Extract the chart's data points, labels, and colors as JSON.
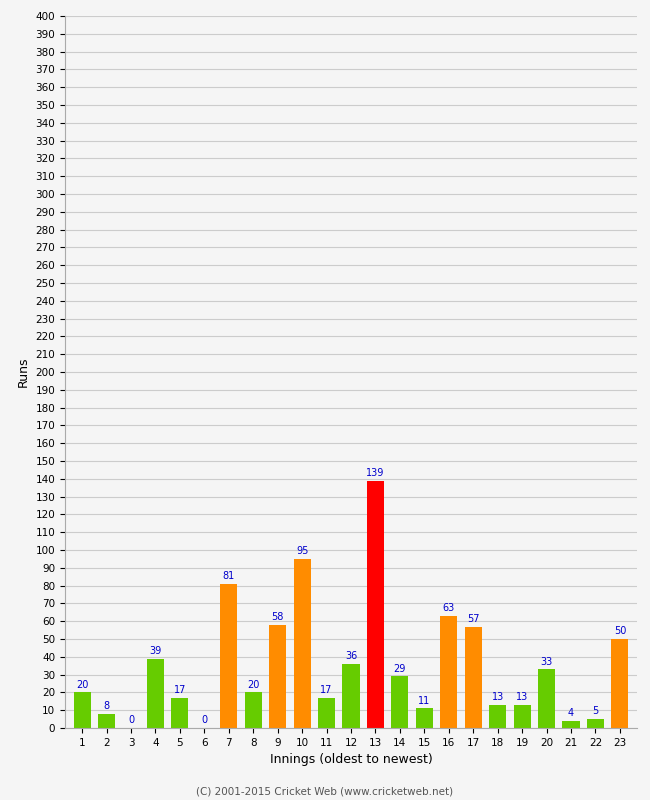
{
  "xlabel": "Innings (oldest to newest)",
  "ylabel": "Runs",
  "innings": [
    1,
    2,
    3,
    4,
    5,
    6,
    7,
    8,
    9,
    10,
    11,
    12,
    13,
    14,
    15,
    16,
    17,
    18,
    19,
    20,
    21,
    22,
    23
  ],
  "values": [
    20,
    8,
    0,
    39,
    17,
    0,
    81,
    20,
    58,
    95,
    17,
    36,
    139,
    29,
    11,
    63,
    57,
    13,
    13,
    33,
    4,
    5,
    50
  ],
  "colors": [
    "#66cc00",
    "#66cc00",
    "#66cc00",
    "#66cc00",
    "#66cc00",
    "#66cc00",
    "#ff8c00",
    "#66cc00",
    "#ff8c00",
    "#ff8c00",
    "#66cc00",
    "#66cc00",
    "#ff0000",
    "#66cc00",
    "#66cc00",
    "#ff8c00",
    "#ff8c00",
    "#66cc00",
    "#66cc00",
    "#66cc00",
    "#66cc00",
    "#66cc00",
    "#ff8c00"
  ],
  "ylim": [
    0,
    400
  ],
  "yticks": [
    0,
    10,
    20,
    30,
    40,
    50,
    60,
    70,
    80,
    90,
    100,
    110,
    120,
    130,
    140,
    150,
    160,
    170,
    180,
    190,
    200,
    210,
    220,
    230,
    240,
    250,
    260,
    270,
    280,
    290,
    300,
    310,
    320,
    330,
    340,
    350,
    360,
    370,
    380,
    390,
    400
  ],
  "label_color": "#0000cc",
  "background_color": "#f5f5f5",
  "grid_color": "#cccccc",
  "footer": "(C) 2001-2015 Cricket Web (www.cricketweb.net)"
}
